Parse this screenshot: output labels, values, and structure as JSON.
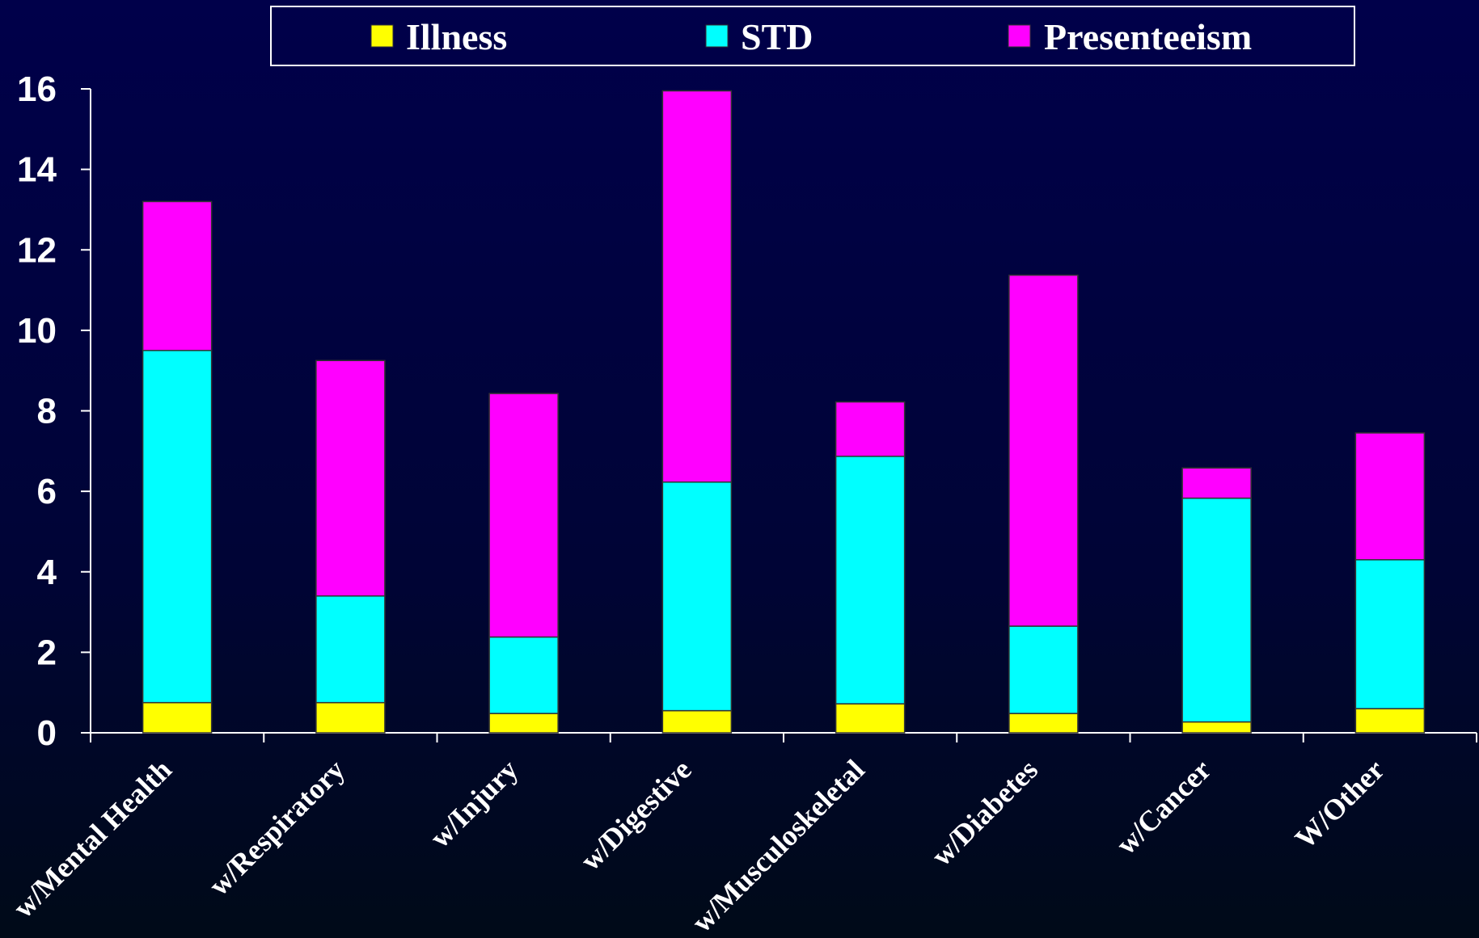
{
  "chart_data": {
    "type": "bar",
    "stacked": true,
    "categories": [
      "w/Mental Health",
      "w/Respiratory",
      "w/Injury",
      "w/Digestive",
      "w/Musculoskeletal",
      "w/Diabetes",
      "w/Cancer",
      "W/Other"
    ],
    "series": [
      {
        "name": "Illness",
        "color": "#ffff00",
        "values": [
          0.75,
          0.75,
          0.48,
          0.55,
          0.72,
          0.48,
          0.27,
          0.6
        ]
      },
      {
        "name": "STD",
        "color": "#00ffff",
        "values": [
          8.75,
          2.65,
          1.9,
          5.68,
          6.15,
          2.17,
          5.56,
          3.7
        ]
      },
      {
        "name": "Presenteeism",
        "color": "#ff00ff",
        "values": [
          3.7,
          5.85,
          6.05,
          9.72,
          1.35,
          8.72,
          0.75,
          3.15
        ]
      }
    ],
    "ylim": [
      0,
      16
    ],
    "yticks": [
      "0",
      "2",
      "4",
      "6",
      "8",
      "10",
      "12",
      "14",
      "16"
    ],
    "legend_position": "top",
    "grid": false,
    "colors": {
      "axis": "#ffffff",
      "bar_outline": "#333333",
      "background": "#00004a"
    }
  }
}
